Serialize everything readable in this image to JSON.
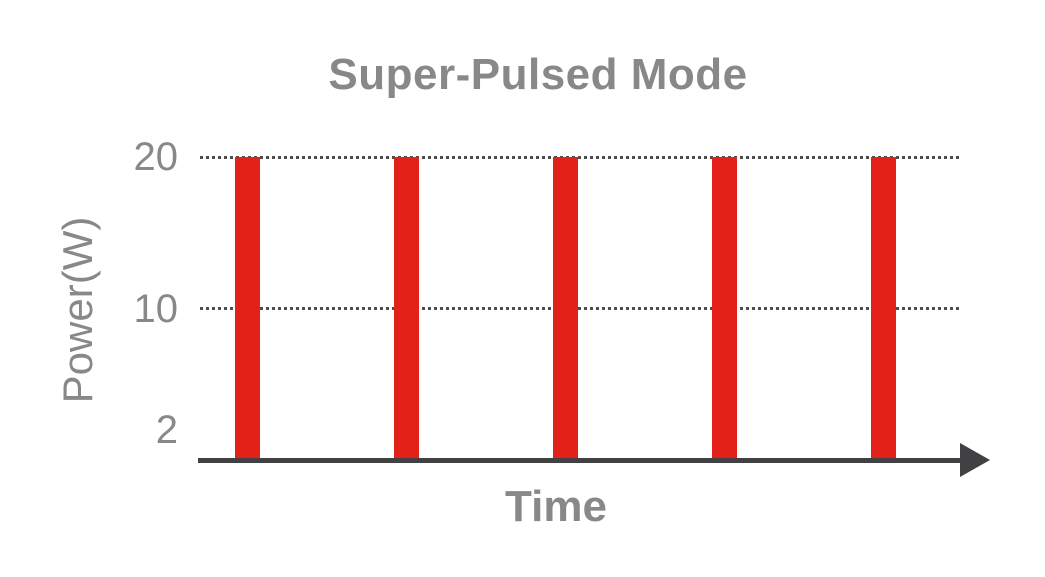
{
  "chart_data": {
    "type": "bar",
    "title": "Super-Pulsed Mode",
    "xlabel": "Time",
    "ylabel": "Power(W)",
    "yticks": [
      {
        "label": "20",
        "value": 20
      },
      {
        "label": "10",
        "value": 10
      },
      {
        "label": "2",
        "value": 2
      }
    ],
    "gridline_values": [
      20,
      10
    ],
    "ylim": [
      0,
      20
    ],
    "grid": "horizontal dotted gridlines at 20 and 10 only",
    "legend": "none",
    "x_description": "five equally spaced pulse instants along the time axis",
    "series": [
      {
        "name": "pulses",
        "values": [
          20,
          20,
          20,
          20,
          20
        ]
      }
    ],
    "annotations": "narrow vertical pulse bars, each rising from the time axis to 20 W",
    "colors": {
      "pulse": "#e32119",
      "axis": "#414042",
      "gridline": "#4d4d4e",
      "text": "#87888a",
      "background": "#ffffff"
    }
  }
}
